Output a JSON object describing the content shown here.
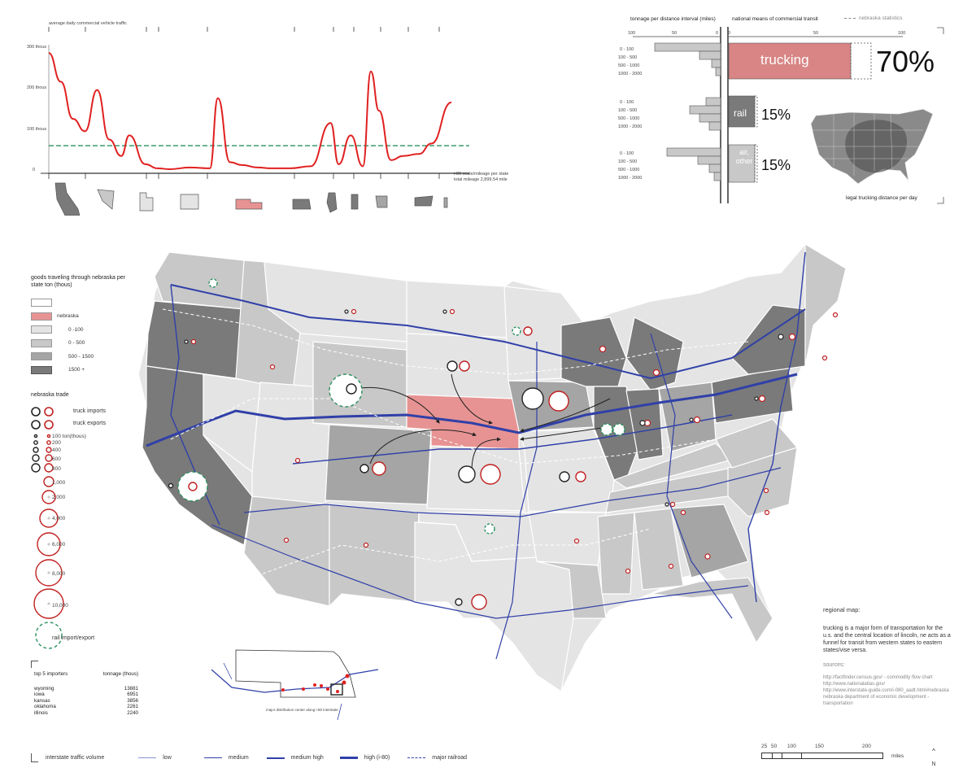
{
  "traffic_chart": {
    "ylabel": "average daily commercial vehicle traffic",
    "yticks": [
      "300 thous",
      "200 thous",
      "100 thous",
      "0"
    ],
    "xnote": "i-80 scale/mileage per state",
    "total": "total mileage 2,899.54 mile",
    "states": [
      "california",
      "nevada",
      "utah",
      "wyoming",
      "nebraska",
      "iowa",
      "illinois",
      "indiana",
      "ohio",
      "pennsylvania",
      "new jersey"
    ],
    "chart_data": {
      "type": "line",
      "title": "average daily commercial vehicle traffic",
      "ylabel": "average daily commercial vehicle traffic",
      "xlabel": "i-80 scale/mileage per state",
      "ylim": [
        0,
        300
      ],
      "x": [
        0,
        3,
        6,
        9,
        12,
        15,
        18,
        20,
        24,
        27,
        30,
        35,
        40,
        42,
        45,
        48,
        52,
        55,
        60,
        65,
        70,
        72,
        75,
        78,
        80,
        82,
        85,
        88,
        92,
        95,
        100
      ],
      "series": [
        {
          "name": "",
          "values": [
            290,
            220,
            130,
            100,
            200,
            80,
            40,
            90,
            20,
            10,
            8,
            12,
            10,
            180,
            25,
            18,
            12,
            10,
            10,
            15,
            120,
            20,
            90,
            15,
            245,
            150,
            30,
            40,
            45,
            70,
            170
          ]
        }
      ],
      "reference_line": 65,
      "grid": false
    }
  },
  "transit": {
    "col1_title": "tonnage per distance interval (miles)",
    "col2_title": "national means of commercial transit",
    "col3_title": "nebraska statistics",
    "axis_left": [
      "100",
      "50",
      "0"
    ],
    "axis_right": [
      "0",
      "50",
      "100"
    ],
    "intervals": [
      "0 - 100",
      "100 - 500",
      "500 - 1000",
      "1000 - 2000"
    ],
    "modes": [
      {
        "label": "trucking",
        "pct": "70%",
        "share": 70
      },
      {
        "label": "rail",
        "pct": "15%",
        "share": 15
      },
      {
        "label": "air, other",
        "pct": "15%",
        "share": 15
      }
    ],
    "us_map_caption": "legal trucking distance per day"
  },
  "legend": {
    "goods_title": "goods traveling through nebraska per state ton (thous)",
    "shades": [
      {
        "label": "",
        "color": "#ffffff"
      },
      {
        "label": "nebraska",
        "color": "#e79393"
      },
      {
        "label": "0 -100",
        "color": "#e4e4e4"
      },
      {
        "label": "0 - 500",
        "color": "#c8c8c8"
      },
      {
        "label": "500 - 1500",
        "color": "#a5a5a5"
      },
      {
        "label": "1500 +",
        "color": "#7a7a7a"
      }
    ],
    "trade_title": "nebraska trade",
    "truck_imports": "truck imports",
    "truck_exports": "truck exports",
    "sizes": [
      "100 ton(thous)",
      "200",
      "400",
      "600",
      "800",
      "1,000",
      "2,000",
      "4,000",
      "6,000",
      "8,000",
      "10,000"
    ],
    "rail": "rail import/export"
  },
  "importers": {
    "col1": "top 5 importers",
    "col2": "tonnage (thous)",
    "rows": [
      {
        "state": "wyoming",
        "ton": "13881"
      },
      {
        "state": "iowa",
        "ton": "6951"
      },
      {
        "state": "kansas",
        "ton": "3856"
      },
      {
        "state": "oklahoma",
        "ton": "2261"
      },
      {
        "state": "illinois",
        "ton": "2240"
      }
    ]
  },
  "inset_caption": "major distribution center along i-80 interstate",
  "region": {
    "title": "regional map:",
    "body": "trucking is a major form of transportation for the u.s. and the central location of lincoln, ne acts as a funnel for transit from western states to eastern states/vise versa.",
    "sources_title": "sources:",
    "sources": [
      "http://factfinder.census.gov/ - commodity flow chart",
      "http://www.nationalatlas.gov/",
      "http://www.interstate-guide.com/i-080_aadt.html#nebraska",
      "nebraska department of economic development - transportation"
    ]
  },
  "bottom_legend": {
    "title": "interstate traffic volume",
    "items": [
      "low",
      "medium",
      "medium high",
      "high (i-80)",
      "major railroad"
    ]
  },
  "scale": {
    "ticks": [
      "25",
      "50",
      "100",
      "150",
      "200"
    ],
    "unit": "miles",
    "north": "N"
  },
  "colors": {
    "red": "#e02020",
    "nebraska": "#e79393",
    "dark": "#7a7a7a",
    "road": "#3040a8"
  }
}
